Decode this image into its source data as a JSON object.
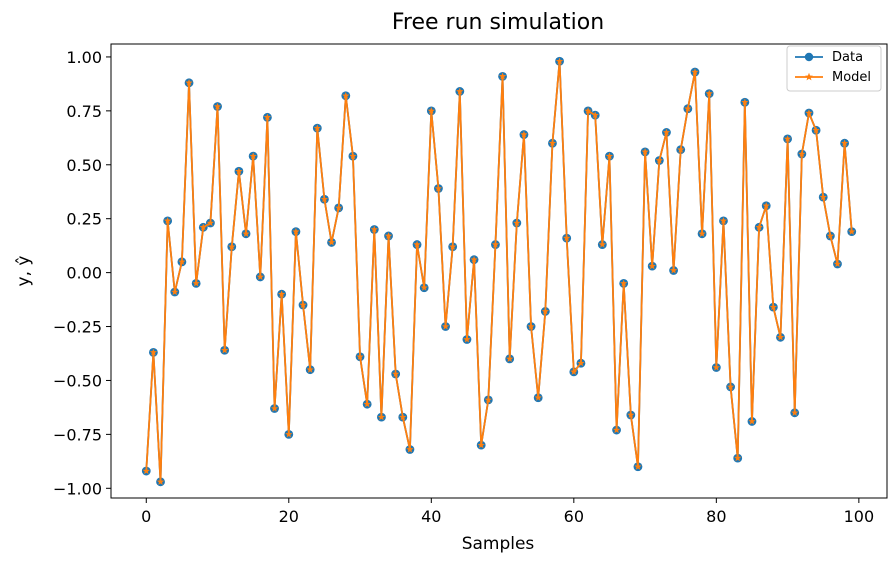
{
  "chart_data": {
    "type": "line",
    "title": "Free run simulation",
    "xlabel": "Samples",
    "ylabel": "y, ŷ",
    "xlim": [
      -4.95,
      103.95
    ],
    "ylim": [
      -1.045,
      1.06
    ],
    "xticks": [
      0,
      20,
      40,
      60,
      80,
      100
    ],
    "yticks": [
      -1.0,
      -0.75,
      -0.5,
      -0.25,
      0.0,
      0.25,
      0.5,
      0.75,
      1.0
    ],
    "ytick_labels": [
      "−1.00",
      "−0.75",
      "−0.50",
      "−0.25",
      "0.00",
      "0.25",
      "0.50",
      "0.75",
      "1.00"
    ],
    "grid": false,
    "legend_position": "top-right",
    "x": [
      0,
      1,
      2,
      3,
      4,
      5,
      6,
      7,
      8,
      9,
      10,
      11,
      12,
      13,
      14,
      15,
      16,
      17,
      18,
      19,
      20,
      21,
      22,
      23,
      24,
      25,
      26,
      27,
      28,
      29,
      30,
      31,
      32,
      33,
      34,
      35,
      36,
      37,
      38,
      39,
      40,
      41,
      42,
      43,
      44,
      45,
      46,
      47,
      48,
      49,
      50,
      51,
      52,
      53,
      54,
      55,
      56,
      57,
      58,
      59,
      60,
      61,
      62,
      63,
      64,
      65,
      66,
      67,
      68,
      69,
      70,
      71,
      72,
      73,
      74,
      75,
      76,
      77,
      78,
      79,
      80,
      81,
      82,
      83,
      84,
      85,
      86,
      87,
      88,
      89,
      90,
      91,
      92,
      93,
      94,
      95,
      96,
      97,
      98,
      99
    ],
    "series": [
      {
        "name": "Data",
        "color": "#1f77b4",
        "marker": "circle",
        "values": [
          -0.92,
          -0.37,
          -0.97,
          0.24,
          -0.09,
          0.05,
          0.88,
          -0.05,
          0.21,
          0.23,
          0.77,
          -0.36,
          0.12,
          0.47,
          0.18,
          0.54,
          -0.02,
          0.72,
          -0.63,
          -0.1,
          -0.75,
          0.19,
          -0.15,
          -0.45,
          0.67,
          0.34,
          0.14,
          0.3,
          0.82,
          0.54,
          -0.39,
          -0.61,
          0.2,
          -0.67,
          0.17,
          -0.47,
          -0.67,
          -0.82,
          0.13,
          -0.07,
          0.75,
          0.39,
          -0.25,
          0.12,
          0.84,
          -0.31,
          0.06,
          -0.8,
          -0.59,
          0.13,
          0.91,
          -0.4,
          0.23,
          0.64,
          -0.25,
          -0.58,
          -0.18,
          0.6,
          0.98,
          0.16,
          -0.46,
          -0.42,
          0.75,
          0.73,
          0.13,
          0.54,
          -0.73,
          -0.05,
          -0.66,
          -0.9,
          0.56,
          0.03,
          0.52,
          0.65,
          0.01,
          0.57,
          0.76,
          0.93,
          0.18,
          0.83,
          -0.44,
          0.24,
          -0.53,
          -0.86,
          0.79,
          -0.69,
          0.21,
          0.31,
          -0.16,
          -0.3,
          0.62,
          -0.65,
          0.55,
          0.74,
          0.66,
          0.35,
          0.17,
          0.04,
          0.6,
          0.19
        ]
      },
      {
        "name": "Model",
        "color": "#ff7f0e",
        "marker": "star",
        "values": [
          -0.92,
          -0.37,
          -0.97,
          0.24,
          -0.09,
          0.05,
          0.88,
          -0.05,
          0.21,
          0.23,
          0.77,
          -0.36,
          0.12,
          0.47,
          0.18,
          0.54,
          -0.02,
          0.72,
          -0.63,
          -0.1,
          -0.75,
          0.19,
          -0.15,
          -0.45,
          0.67,
          0.34,
          0.14,
          0.3,
          0.82,
          0.54,
          -0.39,
          -0.61,
          0.2,
          -0.67,
          0.17,
          -0.47,
          -0.67,
          -0.82,
          0.13,
          -0.07,
          0.75,
          0.39,
          -0.25,
          0.12,
          0.84,
          -0.31,
          0.06,
          -0.8,
          -0.59,
          0.13,
          0.91,
          -0.4,
          0.23,
          0.64,
          -0.25,
          -0.58,
          -0.18,
          0.6,
          0.98,
          0.16,
          -0.46,
          -0.42,
          0.75,
          0.73,
          0.13,
          0.54,
          -0.73,
          -0.05,
          -0.66,
          -0.9,
          0.56,
          0.03,
          0.52,
          0.65,
          0.01,
          0.57,
          0.76,
          0.93,
          0.18,
          0.83,
          -0.44,
          0.24,
          -0.53,
          -0.86,
          0.79,
          -0.69,
          0.21,
          0.31,
          -0.16,
          -0.3,
          0.62,
          -0.65,
          0.55,
          0.74,
          0.66,
          0.35,
          0.17,
          0.04,
          0.6,
          0.19
        ]
      }
    ]
  }
}
